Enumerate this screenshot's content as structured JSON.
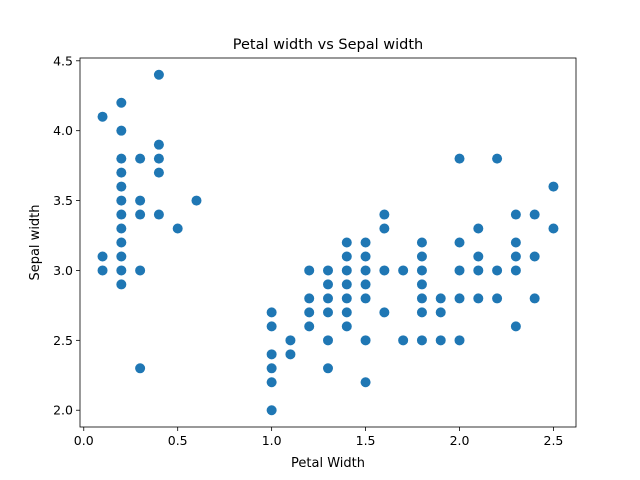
{
  "chart_data": {
    "type": "scatter",
    "title": "Petal width vs Sepal width",
    "xlabel": "Petal Width",
    "ylabel": "Sepal width",
    "xlim": [
      -0.02,
      2.62
    ],
    "ylim": [
      1.88,
      4.52
    ],
    "x_ticks": [
      0.0,
      0.5,
      1.0,
      1.5,
      2.0,
      2.5
    ],
    "x_tick_labels": [
      "0.0",
      "0.5",
      "1.0",
      "1.5",
      "2.0",
      "2.5"
    ],
    "y_ticks": [
      2.0,
      2.5,
      3.0,
      3.5,
      4.0,
      4.5
    ],
    "y_tick_labels": [
      "2.0",
      "2.5",
      "3.0",
      "3.5",
      "4.0",
      "4.5"
    ],
    "grid": false,
    "marker_color": "#1f77b4",
    "points": [
      [
        0.1,
        4.1
      ],
      [
        0.1,
        3.1
      ],
      [
        0.1,
        3.0
      ],
      [
        0.2,
        4.2
      ],
      [
        0.2,
        4.0
      ],
      [
        0.2,
        3.8
      ],
      [
        0.2,
        3.7
      ],
      [
        0.2,
        3.6
      ],
      [
        0.2,
        3.5
      ],
      [
        0.2,
        3.4
      ],
      [
        0.2,
        3.3
      ],
      [
        0.2,
        3.2
      ],
      [
        0.2,
        3.1
      ],
      [
        0.2,
        3.0
      ],
      [
        0.2,
        2.9
      ],
      [
        0.3,
        3.8
      ],
      [
        0.3,
        3.5
      ],
      [
        0.3,
        3.4
      ],
      [
        0.3,
        3.0
      ],
      [
        0.3,
        2.3
      ],
      [
        0.4,
        4.4
      ],
      [
        0.4,
        3.9
      ],
      [
        0.4,
        3.8
      ],
      [
        0.4,
        3.7
      ],
      [
        0.4,
        3.4
      ],
      [
        0.5,
        3.3
      ],
      [
        0.6,
        3.5
      ],
      [
        1.0,
        2.7
      ],
      [
        1.0,
        2.6
      ],
      [
        1.0,
        2.4
      ],
      [
        1.0,
        2.3
      ],
      [
        1.0,
        2.2
      ],
      [
        1.0,
        2.0
      ],
      [
        1.1,
        2.5
      ],
      [
        1.1,
        2.4
      ],
      [
        1.2,
        3.0
      ],
      [
        1.2,
        2.8
      ],
      [
        1.2,
        2.7
      ],
      [
        1.2,
        2.6
      ],
      [
        1.3,
        3.0
      ],
      [
        1.3,
        2.9
      ],
      [
        1.3,
        2.8
      ],
      [
        1.3,
        2.7
      ],
      [
        1.3,
        2.5
      ],
      [
        1.3,
        2.3
      ],
      [
        1.4,
        3.2
      ],
      [
        1.4,
        3.1
      ],
      [
        1.4,
        3.0
      ],
      [
        1.4,
        2.9
      ],
      [
        1.4,
        2.8
      ],
      [
        1.4,
        2.7
      ],
      [
        1.4,
        2.6
      ],
      [
        1.5,
        3.2
      ],
      [
        1.5,
        3.1
      ],
      [
        1.5,
        3.0
      ],
      [
        1.5,
        2.9
      ],
      [
        1.5,
        2.8
      ],
      [
        1.5,
        2.5
      ],
      [
        1.5,
        2.2
      ],
      [
        1.6,
        3.4
      ],
      [
        1.6,
        3.3
      ],
      [
        1.6,
        3.0
      ],
      [
        1.6,
        2.7
      ],
      [
        1.7,
        3.0
      ],
      [
        1.7,
        2.5
      ],
      [
        1.8,
        3.2
      ],
      [
        1.8,
        3.1
      ],
      [
        1.8,
        3.0
      ],
      [
        1.8,
        2.9
      ],
      [
        1.8,
        2.8
      ],
      [
        1.8,
        2.7
      ],
      [
        1.8,
        2.5
      ],
      [
        1.9,
        2.8
      ],
      [
        1.9,
        2.7
      ],
      [
        1.9,
        2.5
      ],
      [
        2.0,
        3.8
      ],
      [
        2.0,
        3.2
      ],
      [
        2.0,
        3.0
      ],
      [
        2.0,
        2.8
      ],
      [
        2.0,
        2.5
      ],
      [
        2.1,
        3.3
      ],
      [
        2.1,
        3.1
      ],
      [
        2.1,
        3.0
      ],
      [
        2.1,
        2.8
      ],
      [
        2.2,
        3.8
      ],
      [
        2.2,
        3.0
      ],
      [
        2.2,
        2.8
      ],
      [
        2.3,
        3.4
      ],
      [
        2.3,
        3.2
      ],
      [
        2.3,
        3.1
      ],
      [
        2.3,
        3.0
      ],
      [
        2.3,
        2.6
      ],
      [
        2.4,
        3.4
      ],
      [
        2.4,
        3.1
      ],
      [
        2.4,
        2.8
      ],
      [
        2.5,
        3.6
      ],
      [
        2.5,
        3.3
      ]
    ]
  }
}
